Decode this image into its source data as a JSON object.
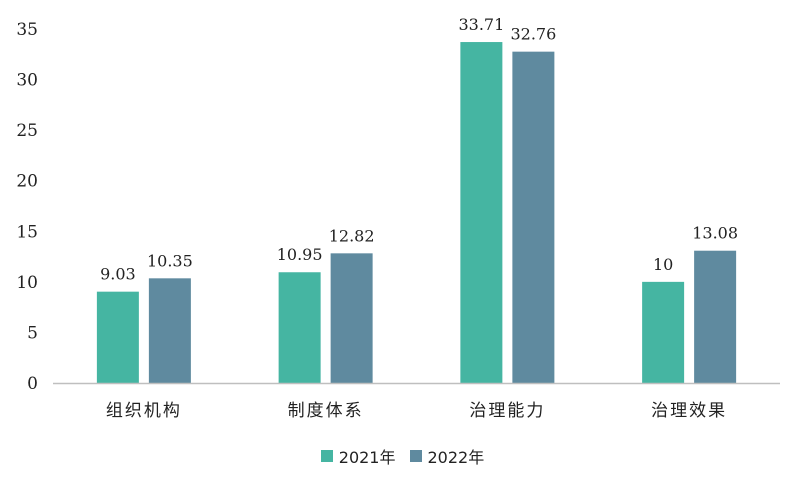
{
  "chart_data": {
    "type": "bar",
    "categories": [
      "组织机构",
      "制度体系",
      "治理能力",
      "治理效果"
    ],
    "series": [
      {
        "name": "2021年",
        "values": [
          9.03,
          10.95,
          33.71,
          10
        ],
        "labels": [
          "9.03",
          "10.95",
          "33.71",
          "10"
        ],
        "color": "#45b5a2"
      },
      {
        "name": "2022年",
        "values": [
          10.35,
          12.82,
          32.76,
          13.08
        ],
        "labels": [
          "10.35",
          "12.82",
          "32.76",
          "13.08"
        ],
        "color": "#5f8a9f"
      }
    ],
    "title": "",
    "xlabel": "",
    "ylabel": "",
    "ylim": [
      0,
      35
    ],
    "yticks": [
      "0",
      "5",
      "10",
      "15",
      "20",
      "25",
      "30",
      "35"
    ],
    "grid": false,
    "legend_position": "bottom"
  }
}
